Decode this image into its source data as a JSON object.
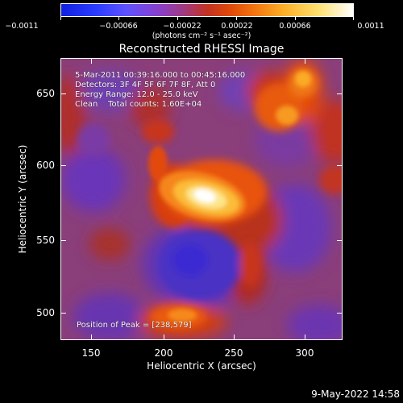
{
  "colorbar": {
    "ticks": [
      "−0.0011",
      "−0.00066",
      "−0.00022",
      "0.00022",
      "0.00066",
      "0.0011"
    ],
    "unit_label": "(photons cm⁻² s⁻¹ asec⁻²)"
  },
  "plot": {
    "title": "Reconstructed RHESSI Image",
    "info": {
      "time_range": "5-Mar-2011 00:39:16.000 to 00:45:16.000",
      "detectors": "Detectors: 3F 4F 5F 6F 7F 8F, Att 0",
      "energy_range": "Energy Range: 12.0 - 25.0 keV",
      "method_counts": "Clean    Total counts: 1.60E+04",
      "peak_position": "Position of Peak = [238,579]"
    },
    "xlabel": "Heliocentric X (arcsec)",
    "ylabel": "Heliocentric Y (arcsec)",
    "xticks": [
      "150",
      "200",
      "250",
      "300"
    ],
    "yticks": [
      "650",
      "600",
      "550",
      "500"
    ],
    "x_range": [
      130,
      330
    ],
    "y_range": [
      480,
      680
    ]
  },
  "colors": {
    "background": "#000000",
    "low": "#1020e0",
    "mid_purple": "#8a3ec8",
    "mid_red": "#c23222",
    "high_orange": "#f27410",
    "peak": "#ffffff"
  },
  "footer": {
    "timestamp": "9-May-2022 14:58"
  }
}
